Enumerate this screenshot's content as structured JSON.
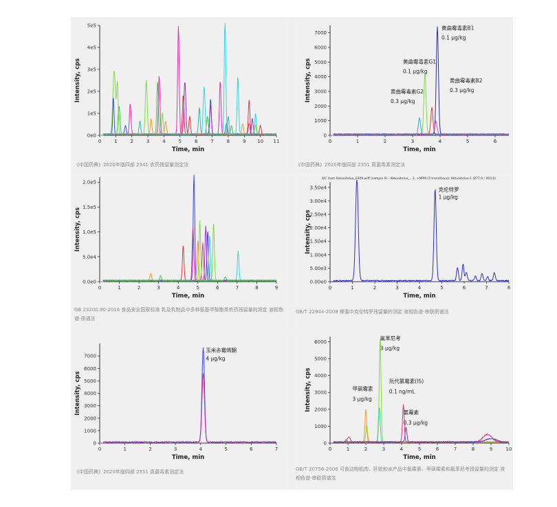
{
  "chart_data": [
    {
      "type": "line",
      "xlabel": "Time, min",
      "ylabel": "Intensity, cps",
      "xlim": [
        0,
        11
      ],
      "ylim": [
        0,
        500000
      ],
      "xticks": [
        "0",
        "1",
        "2",
        "3",
        "4",
        "5",
        "6",
        "7",
        "8",
        "9",
        "10",
        "11"
      ],
      "yticks": [
        "0e0",
        "1e5",
        "2e5",
        "3e5",
        "4e5",
        "5e5"
      ],
      "caption": "《中国药典》2020年版四部 2341 农药残留量测定法",
      "series": [
        {
          "color": "#7ddf3a",
          "peaks": [
            [
              0.9,
              0.08,
              290000
            ],
            [
              1.1,
              0.05,
              230000
            ],
            [
              2.9,
              0.06,
              245000
            ],
            [
              3.9,
              0.05,
              95000
            ],
            [
              9.7,
              0.05,
              45000
            ]
          ]
        },
        {
          "color": "#3fc94c",
          "peaks": [
            [
              1.2,
              0.06,
              130000
            ],
            [
              3.6,
              0.05,
              240000
            ],
            [
              6.7,
              0.06,
              80000
            ],
            [
              8.2,
              0.05,
              40000
            ]
          ]
        },
        {
          "color": "#2a5ae0",
          "peaks": [
            [
              0.85,
              0.04,
              170000
            ],
            [
              1.6,
              0.05,
              40000
            ],
            [
              6.9,
              0.05,
              160000
            ],
            [
              7.9,
              0.05,
              50000
            ]
          ]
        },
        {
          "color": "#e42fb2",
          "peaks": [
            [
              1.9,
              0.05,
              140000
            ],
            [
              3.7,
              0.05,
              265000
            ],
            [
              4.9,
              0.05,
              490000
            ],
            [
              7.5,
              0.05,
              240000
            ],
            [
              9.3,
              0.05,
              50000
            ]
          ]
        },
        {
          "color": "#9a2fd8",
          "peaks": [
            [
              5.3,
              0.06,
              240000
            ],
            [
              6.9,
              0.05,
              135000
            ],
            [
              9.5,
              0.05,
              70000
            ]
          ]
        },
        {
          "color": "#e03838",
          "peaks": [
            [
              5.2,
              0.05,
              180000
            ],
            [
              5.6,
              0.05,
              80000
            ],
            [
              9.3,
              0.05,
              155000
            ],
            [
              10.0,
              0.05,
              40000
            ]
          ]
        },
        {
          "color": "#30d6e4",
          "peaks": [
            [
              6.5,
              0.06,
              215000
            ],
            [
              7.8,
              0.05,
              520000
            ],
            [
              8.6,
              0.05,
              260000
            ],
            [
              9.7,
              0.05,
              95000
            ]
          ]
        },
        {
          "color": "#f59b2a",
          "peaks": [
            [
              3.2,
              0.05,
              70000
            ],
            [
              4.1,
              0.05,
              60000
            ],
            [
              8.9,
              0.05,
              50000
            ]
          ]
        },
        {
          "color": "#2fb8a8",
          "peaks": [
            [
              2.5,
              0.05,
              60000
            ],
            [
              6.2,
              0.05,
              120000
            ],
            [
              8.0,
              0.05,
              85000
            ]
          ]
        }
      ]
    },
    {
      "type": "line",
      "xlabel": "Time, min",
      "ylabel": "Intensity, cps",
      "xlim": [
        0,
        6.5
      ],
      "ylim": [
        0,
        7500
      ],
      "xticks": [
        "0",
        "1",
        "2",
        "3",
        "4",
        "5",
        "6"
      ],
      "yticks": [
        "0",
        "1000",
        "2000",
        "3000",
        "4000",
        "5000",
        "6000",
        "7000"
      ],
      "caption": "《中国药典》2020年版四部 2351 真菌毒素测定法",
      "annotations": [
        {
          "text": "黄曲霉毒素B1",
          "x": 4.05,
          "y": 7200
        },
        {
          "text": "0.1 μg/kg",
          "x": 4.05,
          "y": 6550
        },
        {
          "text": "黄曲霉毒素G1",
          "x": 2.65,
          "y": 4900
        },
        {
          "text": "0.1 μg/kg",
          "x": 2.65,
          "y": 4250
        },
        {
          "text": "黄曲霉毒素B2",
          "x": 4.35,
          "y": 3600
        },
        {
          "text": "0.3 μg/kg",
          "x": 4.35,
          "y": 2950
        },
        {
          "text": "黄曲霉毒素G2",
          "x": 2.2,
          "y": 2850
        },
        {
          "text": "0.3 μg/kg",
          "x": 2.2,
          "y": 2200
        }
      ],
      "series": [
        {
          "color": "#2b2ba0",
          "peaks": [
            [
              3.9,
              0.04,
              7300
            ]
          ]
        },
        {
          "color": "#7ddf3a",
          "peaks": [
            [
              3.45,
              0.04,
              4200
            ]
          ]
        },
        {
          "color": "#e03838",
          "peaks": [
            [
              3.7,
              0.04,
              1800
            ]
          ]
        },
        {
          "color": "#2aa4e4",
          "peaks": [
            [
              3.25,
              0.04,
              1100
            ]
          ]
        },
        {
          "color": "#a855f7",
          "peaks": [
            [
              3.85,
              0.04,
              900
            ]
          ]
        }
      ]
    },
    {
      "type": "line",
      "xlabel": "Time, min",
      "ylabel": "Intensity, cps",
      "xlim": [
        0,
        9
      ],
      "ylim": [
        0,
        210000
      ],
      "xticks": [
        "0",
        "1",
        "2",
        "3",
        "4",
        "5",
        "6",
        "7",
        "8",
        "9"
      ],
      "yticks": [
        "0.0e0",
        "5.0e4",
        "1.0e5",
        "1.5e5",
        "2.0e5"
      ],
      "caption": "GB 23200.90-2016 食品安全国家标准 乳及乳制品中多种氨基甲酸酯类农药残留量的测定 液相色谱-质谱法",
      "series": [
        {
          "color": "#3b45e0",
          "peaks": [
            [
              4.8,
              0.04,
              215000
            ],
            [
              5.5,
              0.04,
              100000
            ]
          ]
        },
        {
          "color": "#e42fb2",
          "peaks": [
            [
              4.75,
              0.04,
              110000
            ],
            [
              5.25,
              0.04,
              75000
            ]
          ]
        },
        {
          "color": "#7ddf3a",
          "peaks": [
            [
              5.1,
              0.04,
              120000
            ],
            [
              5.8,
              0.04,
              115000
            ]
          ]
        },
        {
          "color": "#e03838",
          "peaks": [
            [
              4.25,
              0.04,
              70000
            ]
          ]
        },
        {
          "color": "#30d6e4",
          "peaks": [
            [
              7.05,
              0.04,
              60000
            ],
            [
              5.6,
              0.04,
              90000
            ]
          ]
        },
        {
          "color": "#f59b2a",
          "peaks": [
            [
              2.6,
              0.04,
              15000
            ],
            [
              5.0,
              0.04,
              80000
            ]
          ]
        },
        {
          "color": "#9a2fd8",
          "peaks": [
            [
              5.4,
              0.04,
              110000
            ]
          ]
        },
        {
          "color": "#3fc94c",
          "peaks": [
            [
              3.1,
              0.04,
              10000
            ],
            [
              6.4,
              0.04,
              8000
            ]
          ]
        }
      ]
    },
    {
      "type": "line",
      "title": "XIC from Ketunitelue_0309.wiff (sample 9) - Ketunitelue_...1, +MPM (2 transitions): Ketunitelue-1 (277.0 / 203.0)",
      "xlabel": "Time, min",
      "ylabel": "Intensity, cps",
      "xlim": [
        0,
        8
      ],
      "ylim": [
        0,
        37000
      ],
      "xticks": [
        "0",
        "1",
        "2",
        "3",
        "4",
        "5",
        "6",
        "7",
        "8"
      ],
      "yticks": [
        "0.00e0",
        "5.00e3",
        "1.00e4",
        "1.50e4",
        "2.00e4",
        "2.50e4",
        "3.00e4",
        "3.50e4"
      ],
      "caption": "GB/T 22944-2008 蜂蜜中克伦特罗残留量的测定 液相色谱-串联质谱法",
      "annotations": [
        {
          "text": "克伦特罗",
          "x": 4.85,
          "y": 33600
        },
        {
          "text": "1 μg/kg",
          "x": 4.85,
          "y": 30800
        }
      ],
      "series": [
        {
          "color": "#2f2fc4",
          "peaks": [
            [
              1.2,
              0.06,
              38000
            ],
            [
              4.7,
              0.05,
              34000
            ],
            [
              5.7,
              0.04,
              5000
            ],
            [
              5.95,
              0.04,
              6200
            ],
            [
              6.1,
              0.04,
              3200
            ],
            [
              6.5,
              0.04,
              1800
            ],
            [
              6.8,
              0.04,
              2800
            ],
            [
              7.05,
              0.04,
              1500
            ],
            [
              7.35,
              0.04,
              3200
            ]
          ]
        }
      ]
    },
    {
      "type": "line",
      "xlabel": "Time, min",
      "ylabel": "Intensity, cps",
      "xlim": [
        0,
        7
      ],
      "ylim": [
        0,
        8000
      ],
      "xticks": [
        "0",
        "1",
        "2",
        "3",
        "4",
        "5",
        "6",
        "7"
      ],
      "yticks": [
        "0",
        "1000",
        "2000",
        "3000",
        "4000",
        "5000",
        "6000",
        "7000"
      ],
      "caption": "《中国药典》2020年版四部 2351 真菌毒素测定法",
      "annotations": [
        {
          "text": "玉米赤霉烯酮",
          "x": 4.2,
          "y": 7300
        },
        {
          "text": "4 μg/kg",
          "x": 4.2,
          "y": 6650
        }
      ],
      "series": [
        {
          "color": "#3b45e0",
          "peaks": [
            [
              4.1,
              0.05,
              7600
            ]
          ]
        },
        {
          "color": "#d02fb8",
          "peaks": [
            [
              4.1,
              0.05,
              5500
            ]
          ]
        }
      ]
    },
    {
      "type": "line",
      "xlabel": "Time, min",
      "ylabel": "Intensity, cps",
      "xlim": [
        0,
        10
      ],
      "ylim": [
        0,
        6300
      ],
      "xticks": [
        "0",
        "1",
        "2",
        "3",
        "4",
        "5",
        "6",
        "7",
        "8",
        "9",
        "10"
      ],
      "yticks": [
        "0",
        "1000",
        "2000",
        "3000",
        "4000",
        "5000",
        "6000"
      ],
      "caption": "GB/T 20756-2006 可食动物肌肉、肝脏和水产品中氯霉素、甲砜霉素和氟苯尼考残留量的测定 液相色谱-串联质谱法",
      "annotations": [
        {
          "text": "氟苯尼考",
          "x": 2.8,
          "y": 6100
        },
        {
          "text": "3 μg/kg",
          "x": 2.8,
          "y": 5500
        },
        {
          "text": "氘代氯霉素(IS)",
          "x": 3.3,
          "y": 3550
        },
        {
          "text": "0.1 ng/mL",
          "x": 3.3,
          "y": 2950
        },
        {
          "text": "甲砜霉素",
          "x": 1.25,
          "y": 3100
        },
        {
          "text": "3 μg/kg",
          "x": 1.25,
          "y": 2500
        },
        {
          "text": "氯霉素",
          "x": 4.1,
          "y": 1700
        },
        {
          "text": "0.3 μg/kg",
          "x": 4.1,
          "y": 1100
        }
      ],
      "series": [
        {
          "color": "#7ddf3a",
          "peaks": [
            [
              2.8,
              0.05,
              6200
            ],
            [
              2.05,
              0.05,
              1000
            ]
          ]
        },
        {
          "color": "#3fd6a8",
          "peaks": [
            [
              2.75,
              0.05,
              2100
            ],
            [
              0.9,
              0.05,
              200
            ]
          ]
        },
        {
          "color": "#f59b2a",
          "peaks": [
            [
              2.0,
              0.05,
              1900
            ]
          ]
        },
        {
          "color": "#e42f78",
          "peaks": [
            [
              4.1,
              0.05,
              2200
            ],
            [
              1.05,
              0.08,
              300
            ],
            [
              8.8,
              0.25,
              450
            ]
          ]
        },
        {
          "color": "#6a3ad8",
          "peaks": [
            [
              4.25,
              0.05,
              900
            ],
            [
              9.0,
              0.3,
              200
            ]
          ]
        }
      ]
    }
  ]
}
